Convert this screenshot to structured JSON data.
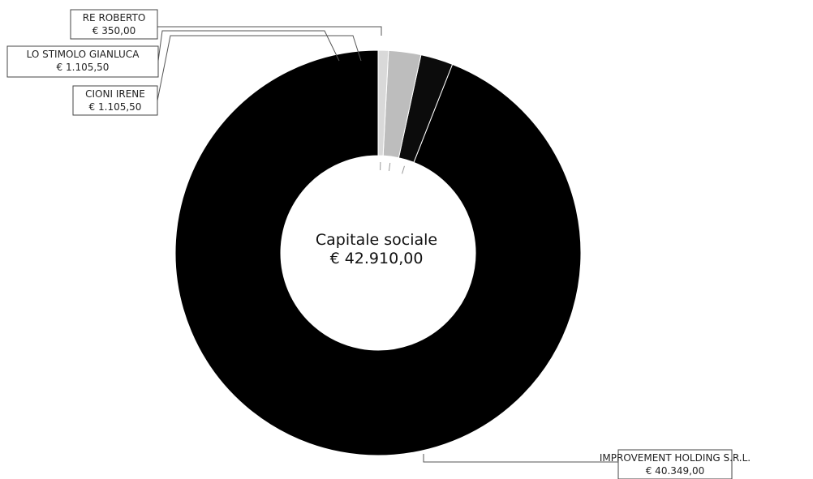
{
  "chart_data": {
    "type": "pie",
    "variant": "donut",
    "center_label": {
      "title": "Capitale sociale",
      "value": "€ 42.910,00"
    },
    "slices": [
      {
        "name": "IMPROVEMENT HOLDING S.R.L.",
        "value": 40349.0,
        "value_label": "€ 40.349,00",
        "color": "#000000"
      },
      {
        "name": "CIONI IRENE",
        "value": 1105.5,
        "value_label": "€ 1.105,50",
        "color": "#0c0c0c"
      },
      {
        "name": "LO STIMOLO GIANLUCA",
        "value": 1105.5,
        "value_label": "€ 1.105,50",
        "color": "#bdbdbd"
      },
      {
        "name": "RE ROBERTO",
        "value": 350.0,
        "value_label": "€ 350,00",
        "color": "#d9d9d9"
      }
    ],
    "start": "top",
    "direction": "counterclockwise"
  }
}
